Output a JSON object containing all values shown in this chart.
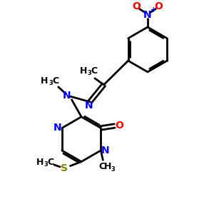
{
  "bg_color": "#ffffff",
  "bond_color": "#000000",
  "N_color": "#0000ff",
  "O_color": "#ff0000",
  "S_color": "#808000",
  "line_width": 2.0,
  "font_size": 9,
  "fig_size": [
    3.0,
    3.0
  ],
  "dpi": 100,
  "xlim": [
    0,
    10
  ],
  "ylim": [
    0,
    10
  ]
}
